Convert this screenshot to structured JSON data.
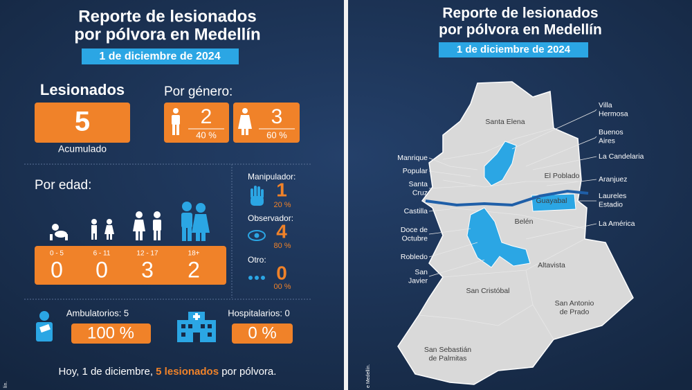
{
  "left": {
    "title": [
      "Reporte de lesionados",
      "por pólvora en Medellín"
    ],
    "date": "1 de diciembre de 2024",
    "total": {
      "label": "Lesionados",
      "value": "5",
      "caption": "Acumulado"
    },
    "gender": {
      "label": "Por género:",
      "items": [
        {
          "value": "2",
          "percent": "40 %"
        },
        {
          "value": "3",
          "percent": "60 %"
        }
      ]
    },
    "age": {
      "label": "Por edad:",
      "groups": [
        {
          "range": "0 - 5",
          "value": "0"
        },
        {
          "range": "6 - 11",
          "value": "0"
        },
        {
          "range": "12 - 17",
          "value": "3"
        },
        {
          "range": "18+",
          "value": "2"
        }
      ]
    },
    "role": [
      {
        "label": "Manipulador:",
        "value": "1",
        "percent": "20 %"
      },
      {
        "label": "Observador:",
        "value": "4",
        "percent": "80 %"
      },
      {
        "label": "Otro:",
        "value": "0",
        "percent": "00 %"
      }
    ],
    "care": [
      {
        "label": "Ambulatorios: 5",
        "percent": "100 %"
      },
      {
        "label": "Hospitalarios: 0",
        "percent": "0 %"
      }
    ],
    "footer": [
      "Hoy, 1 de diciembre, ",
      "5 lesionados",
      " por pólvora."
    ],
    "credit": "lín."
  },
  "right": {
    "title": [
      "Reporte de lesionados",
      "por pólvora en Medellín"
    ],
    "date": "1 de diciembre de 2024",
    "map_labels": {
      "east": [
        [
          "Villa",
          "Hermosa"
        ],
        [
          "Buenos",
          "Aires"
        ],
        [
          "La Candelaria"
        ],
        [
          "Aranjuez"
        ],
        [
          "Laureles",
          "Estadio"
        ],
        [
          "La América"
        ]
      ],
      "west": [
        [
          "Manrique"
        ],
        [
          "Popular"
        ],
        [
          "Santa",
          "Cruz"
        ],
        [
          "Castilla"
        ],
        [
          "Doce de",
          "Octubre"
        ],
        [
          "Robledo"
        ],
        [
          "San",
          "Javier"
        ]
      ],
      "inside": [
        [
          "Santa Elena"
        ],
        [
          "El Poblado"
        ],
        [
          "Guayabal"
        ],
        [
          "Belén"
        ],
        [
          "Altavista"
        ],
        [
          "San Cristóbal"
        ],
        [
          "San Antonio",
          "de Prado"
        ],
        [
          "San Sebastián",
          "de Palmitas"
        ]
      ]
    },
    "credit": "e Medellín."
  }
}
